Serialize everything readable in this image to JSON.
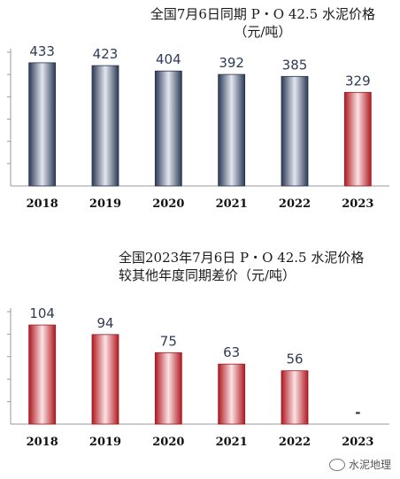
{
  "chart_data": [
    {
      "type": "bar",
      "title_lines": [
        "全国7月6日同期 P・O 42.5 水泥价格",
        "（元/吨）"
      ],
      "categories": [
        "2018",
        "2019",
        "2020",
        "2021",
        "2022",
        "2023"
      ],
      "values": [
        433,
        423,
        404,
        392,
        385,
        329
      ],
      "value_labels": [
        "433",
        "423",
        "404",
        "392",
        "385",
        "329"
      ],
      "ylim": [
        0,
        470
      ],
      "grid": false,
      "colors": {
        "default": "#4a5a78",
        "highlight": "#c8242c"
      }
    },
    {
      "type": "bar",
      "title_lines": [
        "全国2023年7月6日 P・O 42.5 水泥价格",
        "较其他年度同期差价（元/吨）"
      ],
      "categories": [
        "2018",
        "2019",
        "2020",
        "2021",
        "2022",
        "2023"
      ],
      "values": [
        104,
        94,
        75,
        63,
        56,
        null
      ],
      "value_labels": [
        "104",
        "94",
        "75",
        "63",
        "56",
        "-"
      ],
      "ylim": [
        0,
        118
      ],
      "grid": false,
      "colors": {
        "default": "#c8242c"
      }
    }
  ],
  "watermark": "水泥地理"
}
